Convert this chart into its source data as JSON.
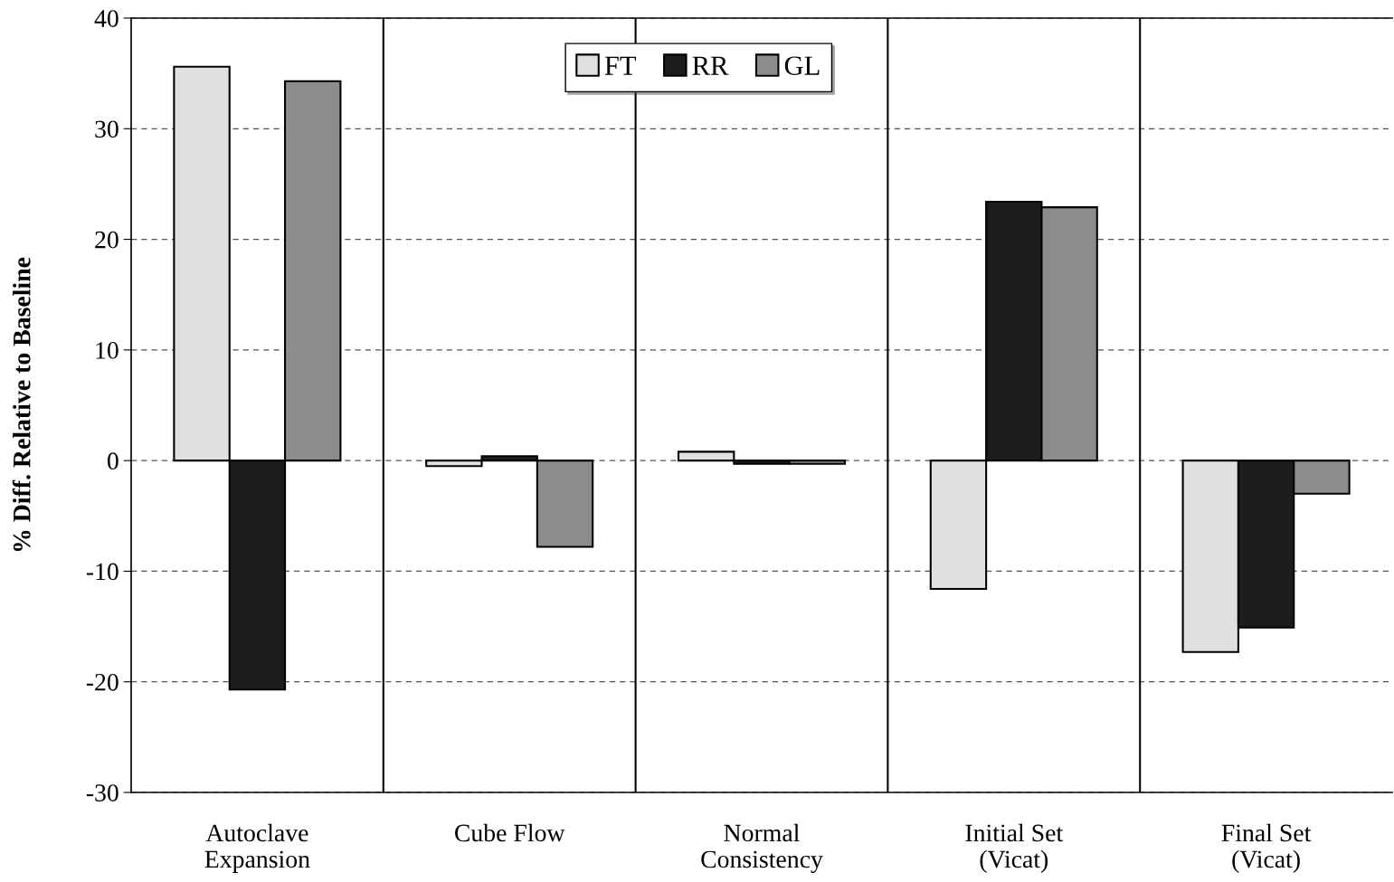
{
  "chart_data": {
    "type": "bar",
    "ylabel": "% Diff. Relative to Baseline",
    "categories": [
      "Autoclave\nExpansion",
      "Cube Flow",
      "Normal\nConsistency",
      "Initial Set\n(Vicat)",
      "Final Set\n(Vicat)"
    ],
    "series": [
      {
        "name": "FT",
        "color": "#e0e0e0",
        "values": [
          35.6,
          -0.5,
          0.8,
          -11.6,
          -17.3
        ]
      },
      {
        "name": "RR",
        "color": "#1c1c1c",
        "values": [
          -20.7,
          0.4,
          -0.3,
          23.4,
          -15.1
        ]
      },
      {
        "name": "GL",
        "color": "#8c8c8c",
        "values": [
          34.3,
          -7.8,
          -0.3,
          22.9,
          -3.0
        ]
      }
    ],
    "ylim": [
      -30,
      40
    ],
    "yticks": [
      -30,
      -20,
      -10,
      0,
      10,
      20,
      30,
      40
    ],
    "grid": "y",
    "legend": "top"
  }
}
